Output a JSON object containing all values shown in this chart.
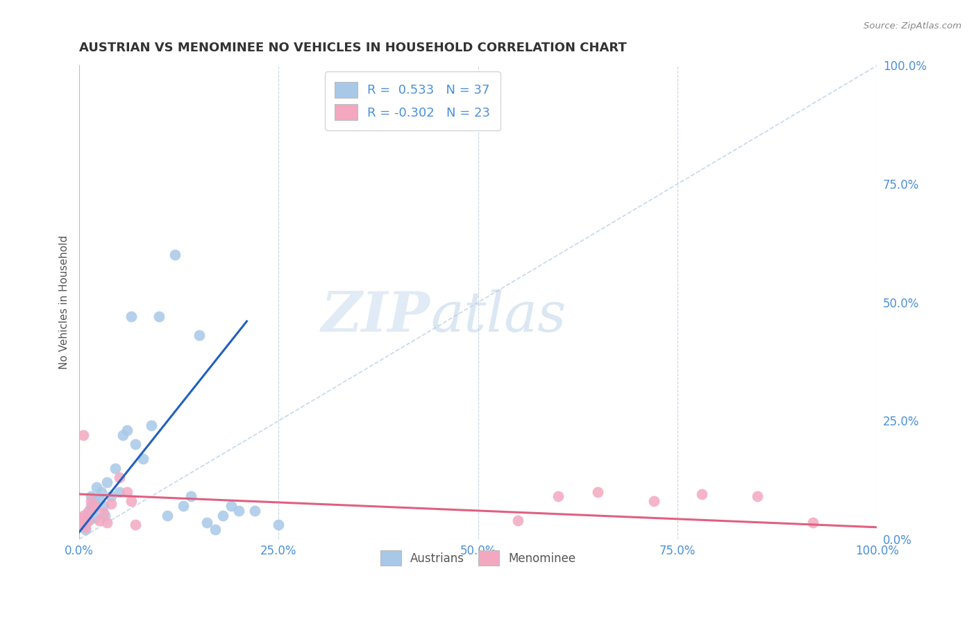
{
  "title": "AUSTRIAN VS MENOMINEE NO VEHICLES IN HOUSEHOLD CORRELATION CHART",
  "source": "Source: ZipAtlas.com",
  "ylabel": "No Vehicles in Household",
  "ytick_labels": [
    "0.0%",
    "25.0%",
    "50.0%",
    "75.0%",
    "100.0%"
  ],
  "ytick_values": [
    0,
    25,
    50,
    75,
    100
  ],
  "xtick_labels": [
    "0.0%",
    "25.0%",
    "50.0%",
    "75.0%",
    "100.0%"
  ],
  "xtick_values": [
    0,
    25,
    50,
    75,
    100
  ],
  "xlim": [
    0,
    100
  ],
  "ylim": [
    0,
    100
  ],
  "legend_blue_r": "R =  0.533",
  "legend_blue_n": "N = 37",
  "legend_pink_r": "R = -0.302",
  "legend_pink_n": "N = 23",
  "legend_label_blue": "Austrians",
  "legend_label_pink": "Menominee",
  "blue_color": "#a8c8e8",
  "pink_color": "#f4a8c0",
  "blue_line_color": "#2060c0",
  "pink_line_color": "#e06080",
  "diagonal_color": "#c0d4e8",
  "watermark_zip": "ZIP",
  "watermark_atlas": "atlas",
  "blue_scatter_x": [
    0.5,
    0.8,
    1.0,
    1.2,
    1.5,
    1.5,
    1.8,
    2.0,
    2.0,
    2.2,
    2.5,
    2.8,
    3.0,
    3.2,
    3.5,
    4.0,
    4.5,
    5.0,
    5.5,
    6.0,
    6.5,
    7.0,
    8.0,
    9.0,
    10.0,
    11.0,
    12.0,
    13.0,
    14.0,
    15.0,
    16.0,
    17.0,
    18.0,
    19.0,
    20.0,
    22.0,
    25.0
  ],
  "blue_scatter_y": [
    3.0,
    2.0,
    5.5,
    4.0,
    7.0,
    9.0,
    6.5,
    4.5,
    8.0,
    11.0,
    8.5,
    10.0,
    7.0,
    5.0,
    12.0,
    9.0,
    15.0,
    10.0,
    22.0,
    23.0,
    47.0,
    20.0,
    17.0,
    24.0,
    47.0,
    5.0,
    60.0,
    7.0,
    9.0,
    43.0,
    3.5,
    2.0,
    5.0,
    7.0,
    6.0,
    6.0,
    3.0
  ],
  "pink_scatter_x": [
    0.0,
    0.3,
    0.5,
    0.8,
    1.0,
    1.2,
    1.5,
    2.0,
    2.5,
    3.0,
    3.5,
    4.0,
    5.0,
    6.0,
    6.5,
    7.0,
    55.0,
    60.0,
    65.0,
    72.0,
    78.0,
    85.0,
    92.0
  ],
  "pink_scatter_y": [
    4.5,
    3.0,
    5.0,
    2.5,
    4.0,
    6.0,
    8.0,
    7.0,
    4.0,
    5.5,
    3.5,
    7.5,
    13.0,
    10.0,
    8.0,
    3.0,
    4.0,
    9.0,
    10.0,
    8.0,
    9.5,
    9.0,
    3.5
  ],
  "pink_scatter_x_outlier_x": 0.5,
  "pink_scatter_outlier_y": 22.0,
  "blue_trend_x0": 0.0,
  "blue_trend_y0": 1.5,
  "blue_trend_x1": 21.0,
  "blue_trend_y1": 46.0,
  "pink_trend_x0": 0.0,
  "pink_trend_y0": 9.5,
  "pink_trend_x1": 100.0,
  "pink_trend_y1": 2.5
}
